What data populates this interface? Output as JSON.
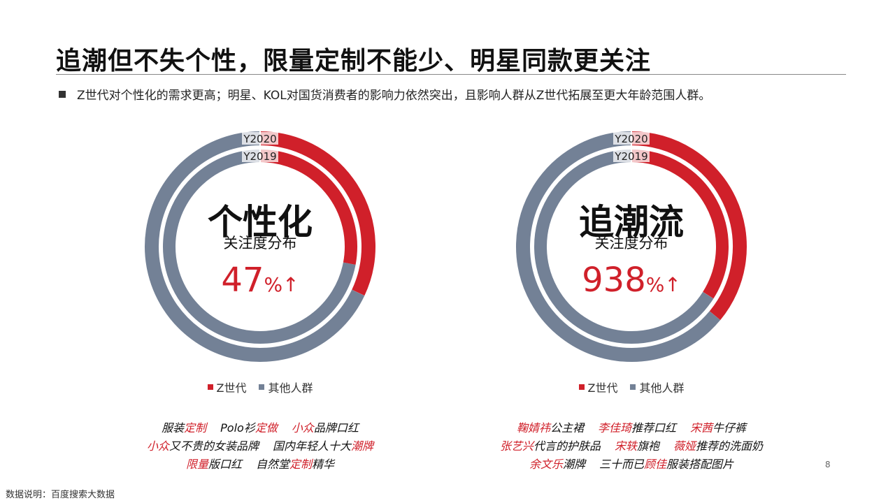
{
  "title": "追潮但不失个性，限量定制不能少、明星同款更关注",
  "bullet": "Z世代对个性化的需求更高；明星、KOL对国货消费者的影响力依然突出，且影响人群从Z世代拓展至更大年龄范围人群。",
  "colors": {
    "accent": "#d0202a",
    "other": "#738196"
  },
  "legend": {
    "z": "Z世代",
    "other": "其他人群"
  },
  "ring_labels": {
    "outer": "Y2020",
    "inner": "Y2019"
  },
  "chart_data": [
    {
      "type": "pie",
      "variant": "double-donut",
      "center_title": "个性化",
      "center_subtitle": "关注度分布",
      "change_value": "47",
      "change_unit": "%",
      "change_arrow": "↑",
      "series": [
        {
          "name": "Y2020",
          "categories": [
            "Z世代",
            "其他人群"
          ],
          "values": [
            0.32,
            0.68
          ]
        },
        {
          "name": "Y2019",
          "categories": [
            "Z世代",
            "其他人群"
          ],
          "values": [
            0.28,
            0.72
          ]
        }
      ],
      "tags": [
        [
          [
            {
              "t": "服装"
            },
            {
              "t": "定制",
              "hl": true
            }
          ],
          [
            {
              "t": "Polo衫"
            },
            {
              "t": "定做",
              "hl": true
            }
          ],
          [
            {
              "t": "小众",
              "hl": true
            },
            {
              "t": "品牌口红"
            }
          ]
        ],
        [
          [
            {
              "t": "小众",
              "hl": true
            },
            {
              "t": "又不贵的女装品牌"
            }
          ],
          [
            {
              "t": "国内年轻人十大"
            },
            {
              "t": "潮牌",
              "hl": true
            }
          ]
        ],
        [
          [
            {
              "t": "限量",
              "hl": true
            },
            {
              "t": "版口红"
            }
          ],
          [
            {
              "t": "自然堂"
            },
            {
              "t": "定制",
              "hl": true
            },
            {
              "t": "精华"
            }
          ]
        ]
      ]
    },
    {
      "type": "pie",
      "variant": "double-donut",
      "center_title": "追潮流",
      "center_subtitle": "关注度分布",
      "change_value": "938",
      "change_unit": "%",
      "change_arrow": "↑",
      "series": [
        {
          "name": "Y2020",
          "categories": [
            "Z世代",
            "其他人群"
          ],
          "values": [
            0.36,
            0.64
          ]
        },
        {
          "name": "Y2019",
          "categories": [
            "Z世代",
            "其他人群"
          ],
          "values": [
            0.34,
            0.66
          ]
        }
      ],
      "tags": [
        [
          [
            {
              "t": "鞠婧祎",
              "hl": true
            },
            {
              "t": "公主裙"
            }
          ],
          [
            {
              "t": "李佳琦",
              "hl": true
            },
            {
              "t": "推荐口红"
            }
          ],
          [
            {
              "t": "宋茜",
              "hl": true
            },
            {
              "t": "牛仔裤"
            }
          ]
        ],
        [
          [
            {
              "t": "张艺兴",
              "hl": true
            },
            {
              "t": "代言的护肤品"
            }
          ],
          [
            {
              "t": "宋轶",
              "hl": true
            },
            {
              "t": "旗袍"
            }
          ],
          [
            {
              "t": "薇娅",
              "hl": true
            },
            {
              "t": "推荐的洗面奶"
            }
          ]
        ],
        [
          [
            {
              "t": "余文乐",
              "hl": true
            },
            {
              "t": "潮牌"
            }
          ],
          [
            {
              "t": "三十而已"
            },
            {
              "t": "顾佳",
              "hl": true
            },
            {
              "t": "服装搭配图片"
            }
          ]
        ]
      ]
    }
  ],
  "page_number": "8",
  "footnote": "数据说明：百度搜索大数据"
}
